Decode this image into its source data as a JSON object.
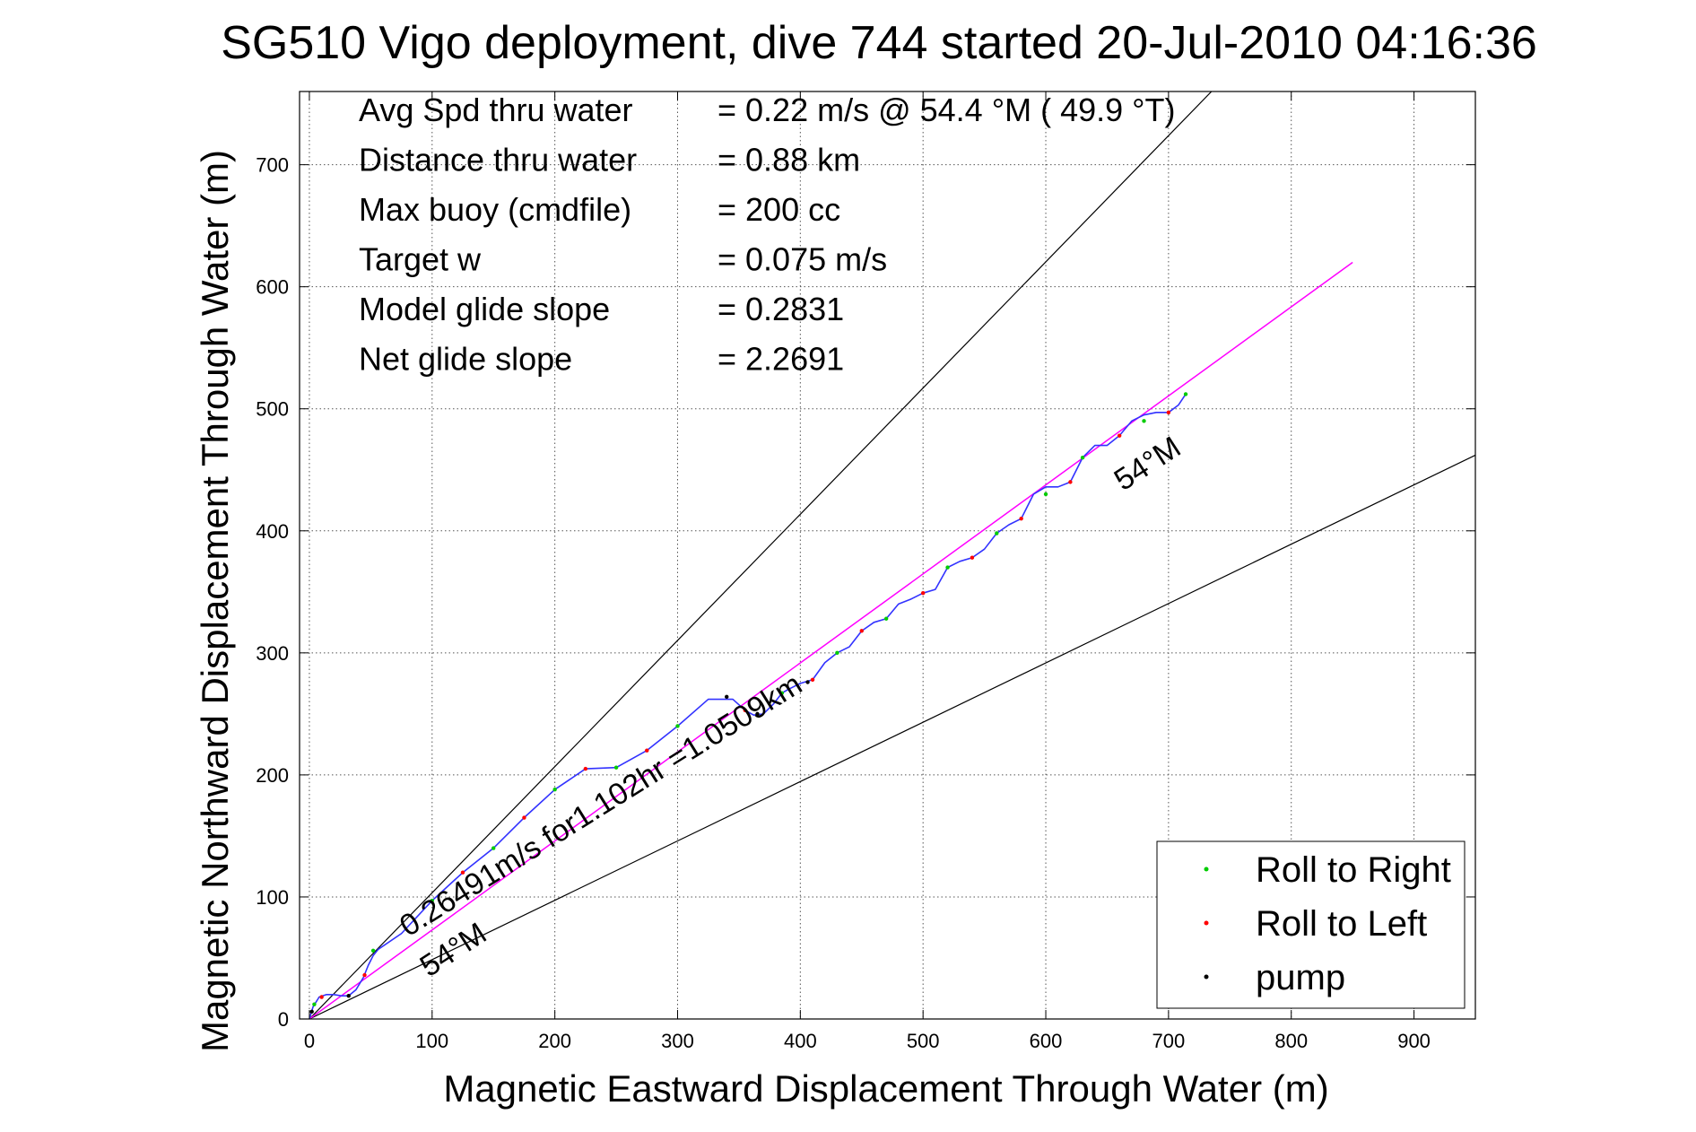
{
  "chart_data": {
    "type": "line",
    "title": "SG510 Vigo deployment, dive 744 started 20-Jul-2010 04:16:36",
    "xlabel": "Magnetic Eastward Displacement Through Water (m)",
    "ylabel": "Magnetic Northward Displacement Through Water (m)",
    "xlim": [
      -8,
      950
    ],
    "ylim": [
      0,
      760
    ],
    "x_ticks": [
      0,
      100,
      200,
      300,
      400,
      500,
      600,
      700,
      800,
      900
    ],
    "y_ticks": [
      0,
      100,
      200,
      300,
      400,
      500,
      600,
      700
    ],
    "grid": true,
    "legend_position": "bottom-right",
    "colors": {
      "track": "#3232ff",
      "roll_right": "#00cc00",
      "roll_left": "#ff0000",
      "pump": "#000000",
      "guide": "#000000",
      "model": "#ff00ff"
    },
    "info_lines": [
      {
        "label": "Avg Spd thru water",
        "value": "=  0.22 m/s @  54.4 °M ( 49.9 °T)"
      },
      {
        "label": "Distance thru water",
        "value": "=  0.88 km"
      },
      {
        "label": "Max buoy (cmdfile)",
        "value": "= 200 cc"
      },
      {
        "label": "Target w",
        "value": "= 0.075 m/s"
      },
      {
        "label": "Model glide slope",
        "value": "= 0.2831"
      },
      {
        "label": "Net glide slope",
        "value": "= 2.2691"
      }
    ],
    "annotations": {
      "model_line": "0.26491m/s for1.102hr =1.0509km",
      "heading_upper": "54°M",
      "heading_lower": "54°M"
    },
    "guide_lines": [
      {
        "x": [
          0,
          735
        ],
        "y": [
          0,
          760
        ]
      },
      {
        "x": [
          0,
          950
        ],
        "y": [
          0,
          462
        ]
      }
    ],
    "model_line": {
      "x": [
        0,
        850
      ],
      "y": [
        0,
        620
      ]
    },
    "series": [
      {
        "name": "track",
        "x": [
          0,
          3,
          8,
          14,
          20,
          26,
          32,
          38,
          44,
          48,
          52,
          56,
          75,
          100,
          125,
          150,
          175,
          200,
          225,
          250,
          275,
          300,
          325,
          345,
          355,
          362,
          370,
          378,
          385,
          390,
          400,
          410,
          420,
          430,
          440,
          450,
          460,
          470,
          480,
          490,
          500,
          510,
          520,
          530,
          540,
          550,
          560,
          570,
          580,
          590,
          600,
          610,
          620,
          630,
          640,
          650,
          660,
          670,
          680,
          690,
          700,
          708,
          714
        ],
        "y": [
          0,
          10,
          18,
          20,
          20,
          19,
          19,
          24,
          34,
          44,
          52,
          57,
          70,
          97,
          120,
          140,
          165,
          188,
          205,
          206,
          220,
          240,
          262,
          262,
          253,
          249,
          250,
          258,
          267,
          270,
          275,
          278,
          292,
          300,
          305,
          318,
          325,
          328,
          340,
          344,
          349,
          352,
          370,
          375,
          378,
          385,
          398,
          405,
          410,
          430,
          436,
          436,
          440,
          460,
          470,
          470,
          478,
          490,
          495,
          497,
          497,
          503,
          512
        ]
      }
    ],
    "markers": [
      {
        "name": "Roll to Right",
        "color": "#00cc00",
        "x": [
          4,
          52,
          100,
          150,
          200,
          250,
          300,
          385,
          430,
          470,
          520,
          560,
          600,
          630,
          680,
          714
        ],
        "y": [
          12,
          56,
          97,
          140,
          188,
          206,
          240,
          267,
          300,
          328,
          370,
          398,
          430,
          460,
          490,
          512
        ]
      },
      {
        "name": "Roll to Left",
        "color": "#ff0000",
        "x": [
          10,
          45,
          125,
          175,
          225,
          275,
          355,
          410,
          450,
          500,
          540,
          580,
          620,
          660,
          700
        ],
        "y": [
          18,
          36,
          120,
          165,
          205,
          220,
          253,
          278,
          318,
          349,
          378,
          410,
          440,
          478,
          497
        ]
      },
      {
        "name": "pump",
        "color": "#000000",
        "x": [
          2,
          32,
          340,
          365,
          406
        ],
        "y": [
          6,
          19,
          264,
          250,
          276
        ]
      }
    ]
  }
}
